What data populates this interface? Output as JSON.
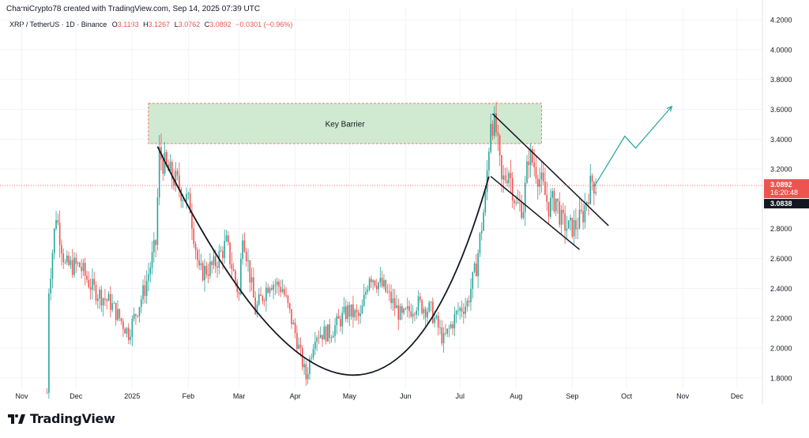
{
  "header": {
    "author_line": "ChamiCrypto78 created with TradingView.com, Sep 14, 2025 07:39 UTC"
  },
  "legend": {
    "symbol": "XRP / TetherUS · 1D · Binance",
    "o_key": "O",
    "o_val": "3.1193",
    "h_key": "H",
    "h_val": "3.1267",
    "l_key": "L",
    "l_val": "3.0762",
    "c_key": "C",
    "c_val": "3.0892",
    "change": "−0.0301 (−0.96%)"
  },
  "annotations": {
    "zone_label": "Key Barrier",
    "last_price": "3.0892",
    "countdown": "16:20:48",
    "secondary_price": "3.0838"
  },
  "branding": {
    "name": "TradingView"
  },
  "colors": {
    "up": "#26a69a",
    "down": "#ef5350",
    "zone_fill": "#c8e6c9",
    "zone_border": "#ef5350",
    "price_tag": "#ef5350",
    "dark_tag": "#131722",
    "projection": "#26a69a"
  },
  "chart_data": {
    "type": "candlestick",
    "y_ticks": [
      "4.2000",
      "4.0000",
      "3.8000",
      "3.6000",
      "3.4000",
      "3.2000",
      "2.8000",
      "2.6000",
      "2.4000",
      "2.2000",
      "2.0000",
      "1.8000"
    ],
    "x_ticks": [
      "Nov",
      "Dec",
      "2025",
      "Feb",
      "Mar",
      "Apr",
      "May",
      "Jun",
      "Jul",
      "Aug",
      "Sep",
      "Oct",
      "Nov",
      "Dec"
    ],
    "ylim": [
      1.73,
      4.28
    ],
    "x_range": [
      "2024-10-20",
      "2025-12-15"
    ],
    "key_barrier_zone": {
      "x_start": "2025-01-10",
      "x_end": "2025-08-15",
      "y_low": 3.37,
      "y_high": 3.64
    },
    "last_price": 3.0892,
    "trend_points": [
      [
        "2024-11-15",
        1.7
      ],
      [
        "2024-11-16",
        2.4
      ],
      [
        "2024-11-20",
        2.9
      ],
      [
        "2024-11-25",
        2.55
      ],
      [
        "2024-12-03",
        2.55
      ],
      [
        "2024-12-10",
        2.4
      ],
      [
        "2024-12-20",
        2.3
      ],
      [
        "2024-12-30",
        2.1
      ],
      [
        "2025-01-08",
        2.4
      ],
      [
        "2025-01-14",
        2.7
      ],
      [
        "2025-01-16",
        3.3
      ],
      [
        "2025-01-20",
        3.2
      ],
      [
        "2025-01-26",
        3.1
      ],
      [
        "2025-02-02",
        2.95
      ],
      [
        "2025-02-07",
        2.5
      ],
      [
        "2025-02-15",
        2.55
      ],
      [
        "2025-02-22",
        2.7
      ],
      [
        "2025-03-01",
        2.35
      ],
      [
        "2025-03-03",
        2.8
      ],
      [
        "2025-03-10",
        2.25
      ],
      [
        "2025-03-18",
        2.45
      ],
      [
        "2025-03-25",
        2.4
      ],
      [
        "2025-04-01",
        2.1
      ],
      [
        "2025-04-07",
        1.8
      ],
      [
        "2025-04-12",
        2.1
      ],
      [
        "2025-04-20",
        2.1
      ],
      [
        "2025-04-30",
        2.25
      ],
      [
        "2025-05-07",
        2.2
      ],
      [
        "2025-05-12",
        2.5
      ],
      [
        "2025-05-20",
        2.4
      ],
      [
        "2025-05-30",
        2.2
      ],
      [
        "2025-06-07",
        2.3
      ],
      [
        "2025-06-15",
        2.25
      ],
      [
        "2025-06-22",
        2.05
      ],
      [
        "2025-06-30",
        2.25
      ],
      [
        "2025-07-05",
        2.3
      ],
      [
        "2025-07-10",
        2.55
      ],
      [
        "2025-07-15",
        3.0
      ],
      [
        "2025-07-18",
        3.55
      ],
      [
        "2025-07-21",
        3.45
      ],
      [
        "2025-07-24",
        3.1
      ],
      [
        "2025-07-28",
        3.2
      ],
      [
        "2025-08-01",
        2.95
      ],
      [
        "2025-08-05",
        2.95
      ],
      [
        "2025-08-08",
        3.3
      ],
      [
        "2025-08-12",
        3.2
      ],
      [
        "2025-08-15",
        3.1
      ],
      [
        "2025-08-19",
        2.95
      ],
      [
        "2025-08-23",
        3.0
      ],
      [
        "2025-08-26",
        2.85
      ],
      [
        "2025-08-30",
        2.8
      ],
      [
        "2025-09-03",
        2.82
      ],
      [
        "2025-09-07",
        2.9
      ],
      [
        "2025-09-10",
        3.05
      ],
      [
        "2025-09-12",
        3.12
      ],
      [
        "2025-09-14",
        3.09
      ]
    ],
    "cup_curve": [
      [
        "2025-01-15",
        3.35
      ],
      [
        "2025-04-30",
        1.82
      ],
      [
        "2025-07-17",
        3.15
      ]
    ],
    "wedge_upper": [
      [
        "2025-07-19",
        3.57
      ],
      [
        "2025-09-21",
        2.82
      ]
    ],
    "wedge_lower": [
      [
        "2025-07-18",
        3.15
      ],
      [
        "2025-09-05",
        2.66
      ]
    ],
    "projection": [
      [
        "2025-09-13",
        3.08
      ],
      [
        "2025-09-30",
        3.42
      ],
      [
        "2025-10-06",
        3.34
      ],
      [
        "2025-10-26",
        3.62
      ]
    ]
  }
}
